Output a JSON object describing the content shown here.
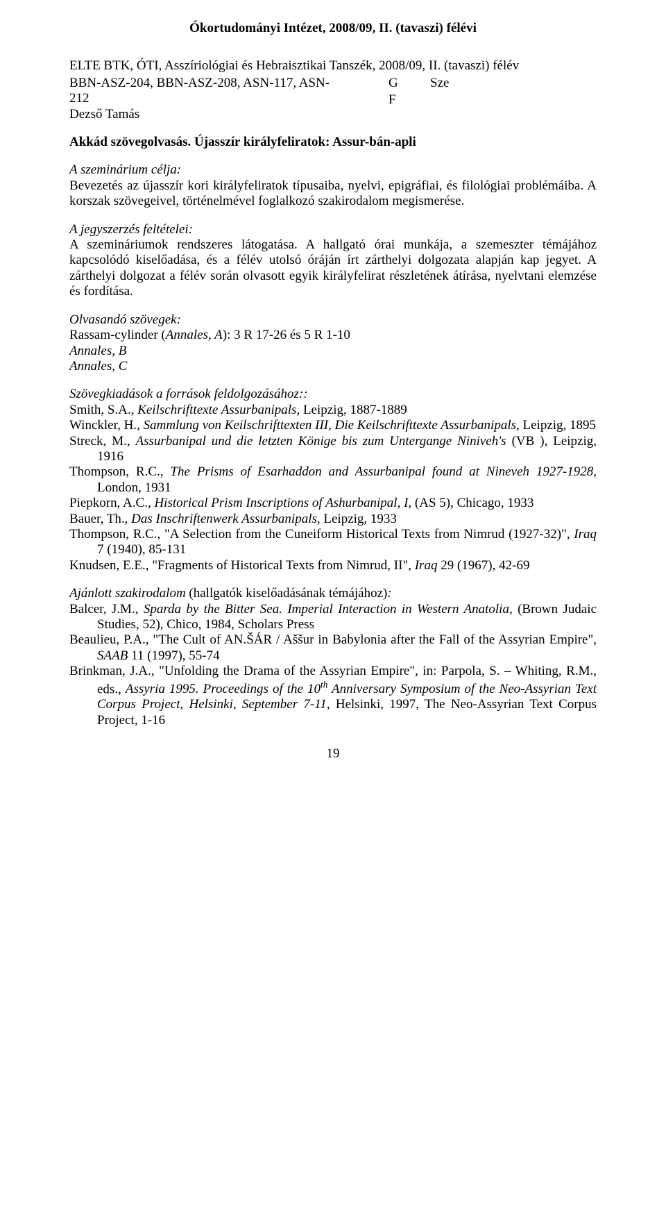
{
  "header": "Ókortudományi Intézet, 2008/09, II. (tavaszi) félévi",
  "dept": "ELTE BTK, ÓTI, Asszíriológiai és Hebraisztikai Tanszék, 2008/09, II. (tavaszi) félév",
  "code_line1": "BBN-ASZ-204, BBN-ASZ-208, ASN-117, ASN-",
  "code_line2": "212",
  "col_g": "G",
  "col_sze": "Sze",
  "instructor": "Dezső Tamás",
  "col_f": "F",
  "course_title": "Akkád szövegolvasás. Újasszír királyfeliratok: Assur-bán-apli",
  "sem_goal_label": "A szeminárium célja:",
  "sem_goal_body": "Bevezetés az újasszír kori királyfeliratok típusaiba, nyelvi, epigráfiai, és filológiai problémáiba. A korszak szövegeivel, történelmével foglalkozó szakirodalom megismerése.",
  "req_label": "A jegyszerzés feltételei:",
  "req_body": "A szemináriumok rendszeres látogatása. A hallgató órai munkája, a szemeszter témájához kapcsolódó kiselőadása, és a félév utolsó óráján írt zárthelyi dolgozata alapján kap jegyet. A zárthelyi dolgozat a félév során olvasott egyik királyfelirat részletének átírása, nyelvtani elemzése és fordítása.",
  "read_label": "Olvasandó szövegek:",
  "read_1_pre": "Rassam-cylinder (",
  "read_1_it": "Annales, A",
  "read_1_post": "): 3 R 17-26 és 5 R 1-10",
  "read_2": "Annales, B",
  "read_3": "Annales, C",
  "editions_label": "Szövegkiadások a források feldolgozásához::",
  "ed1_a": "Smith, S.A., ",
  "ed1_b": "Keilschrifttexte Assurbanipals",
  "ed1_c": ", Leipzig, 1887-1889",
  "ed2_a": "Winckler, H., ",
  "ed2_b": "Sammlung von Keilschrifttexten III, Die Keilschrifttexte Assurbanipals",
  "ed2_c": ", Leipzig, 1895",
  "ed3_a": "Streck, M., ",
  "ed3_b": "Assurbanipal und die letzten Könige bis zum Untergange Niniveh's ",
  "ed3_c": "(VB ), Leipzig, 1916",
  "ed4_a": "Thompson, R.C., ",
  "ed4_b": "The Prisms of Esarhaddon and Assurbanipal found at Nineveh 1927-1928",
  "ed4_c": ", London, 1931",
  "ed5_a": "Piepkorn, A.C., ",
  "ed5_b": "Historical Prism Inscriptions of Ashurbanipal, I",
  "ed5_c": ", (AS 5), Chicago, 1933",
  "ed6_a": "Bauer, Th., ",
  "ed6_b": "Das Inschriftenwerk Assurbanipals",
  "ed6_c": ", Leipzig, 1933",
  "ed7_a": "Thompson, R.C., \"A Selection from the Cuneiform Historical Texts from Nimrud (1927-32)\", ",
  "ed7_b": "Iraq",
  "ed7_c": " 7 (1940), 85-131",
  "ed8_a": "Knudsen, E.E., \"Fragments of Historical Texts from Nimrud, II\", ",
  "ed8_b": "Iraq",
  "ed8_c": " 29 (1967), 42-69",
  "rec_label_it": "Ajánlott szakirodalom ",
  "rec_label_rest": "(hallgatók kiselőadásának témájához)",
  "rec_label_colon": ":",
  "r1_a": "Balcer, J.M., ",
  "r1_b": "Sparda by the Bitter Sea. Imperial Interaction in Western Anatolia",
  "r1_c": ", (Brown Judaic Studies, 52), Chico, 1984, Scholars Press",
  "r2_a": "Beaulieu, P.A., \"The Cult of AN.ŠÁR / Aššur in Babylonia after the Fall of the Assyrian Empire\", ",
  "r2_b": "SAAB",
  "r2_c": " 11 (1997), 55-74",
  "r3_a": "Brinkman, J.A., \"Unfolding the Drama of the Assyrian Empire\", in: Parpola, S. – Whiting, R.M., eds., ",
  "r3_b": "Assyria 1995. Proceedings of the 10",
  "r3_sup": "th",
  "r3_b2": " Anniversary Symposium of the Neo-Assyrian Text Corpus Project, Helsinki, September 7-11",
  "r3_c": ", Helsinki, 1997, The Neo-Assyrian Text Corpus Project, 1-16",
  "pagenum": "19"
}
